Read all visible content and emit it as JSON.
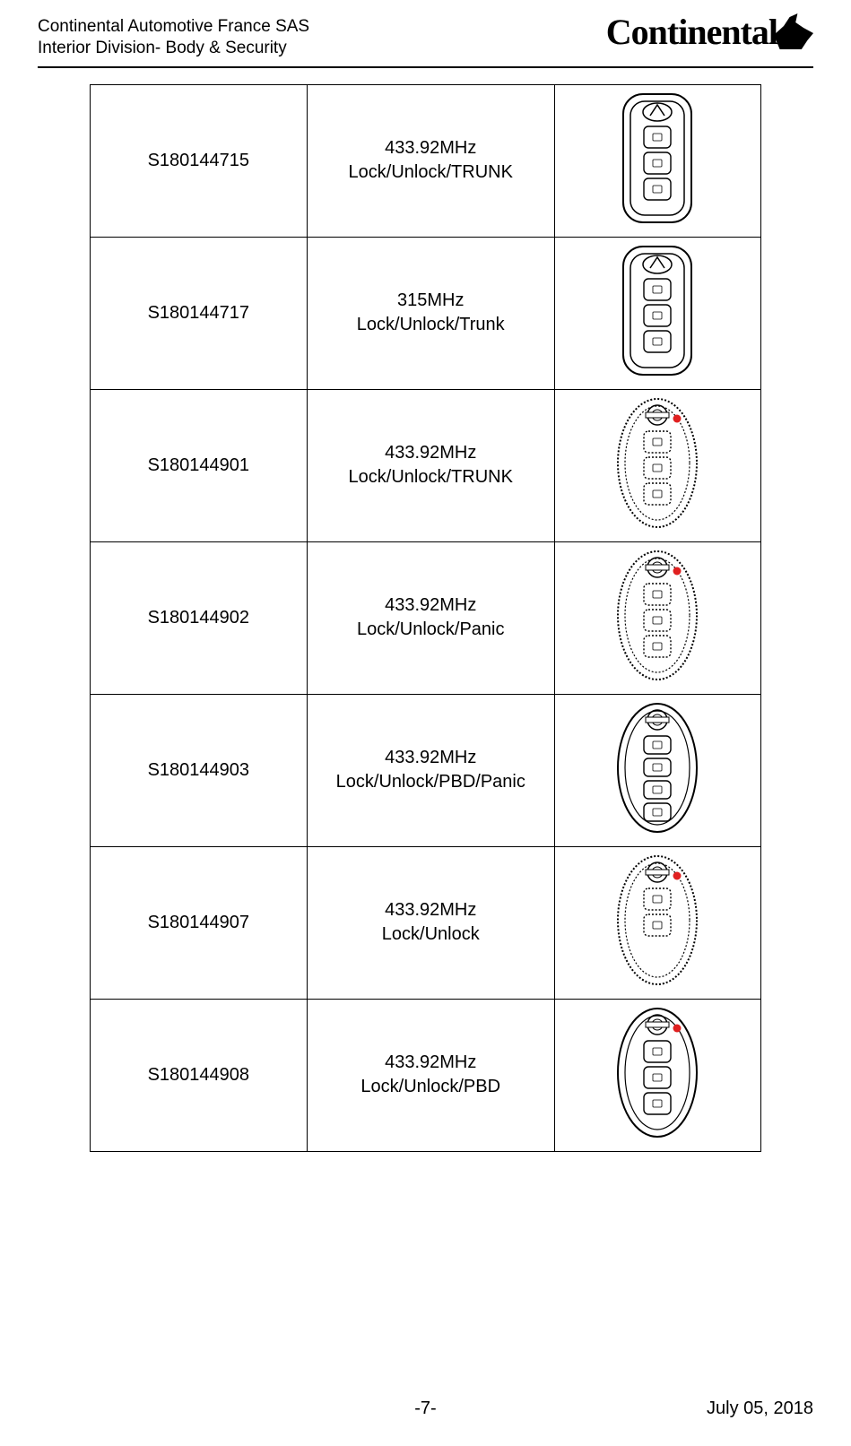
{
  "header": {
    "line1": "Continental Automotive France SAS",
    "line2": "Interior Division- Body & Security",
    "logo_text": "Continental"
  },
  "rows": [
    {
      "id": "S180144715",
      "freq": "433.92MHz",
      "funcs": "Lock/Unlock/TRUNK",
      "shape": "rect",
      "buttons": 3,
      "badge": "infiniti",
      "dot": false
    },
    {
      "id": "S180144717",
      "freq": "315MHz",
      "funcs": "Lock/Unlock/Trunk",
      "shape": "rect",
      "buttons": 3,
      "badge": "infiniti",
      "dot": false
    },
    {
      "id": "S180144901",
      "freq": "433.92MHz",
      "funcs": "Lock/Unlock/TRUNK",
      "shape": "oval",
      "buttons": 3,
      "badge": "nissan",
      "dot": true,
      "dashed": true
    },
    {
      "id": "S180144902",
      "freq": "433.92MHz",
      "funcs": "Lock/Unlock/Panic",
      "shape": "oval",
      "buttons": 3,
      "badge": "nissan",
      "dot": true,
      "dashed": true
    },
    {
      "id": "S180144903",
      "freq": "433.92MHz",
      "funcs": "Lock/Unlock/PBD/Panic",
      "shape": "oval",
      "buttons": 4,
      "badge": "nissan",
      "dot": false
    },
    {
      "id": "S180144907",
      "freq": "433.92MHz",
      "funcs": "Lock/Unlock",
      "shape": "oval",
      "buttons": 2,
      "badge": "nissan",
      "dot": true,
      "dashed": true
    },
    {
      "id": "S180144908",
      "freq": "433.92MHz",
      "funcs": "Lock/Unlock/PBD",
      "shape": "oval",
      "buttons": 3,
      "badge": "nissan",
      "dot": true
    }
  ],
  "footer": {
    "page": "-7-",
    "date": "July 05, 2018"
  },
  "colors": {
    "dot": "#e02020",
    "stroke": "#000000",
    "light": "#888888"
  }
}
